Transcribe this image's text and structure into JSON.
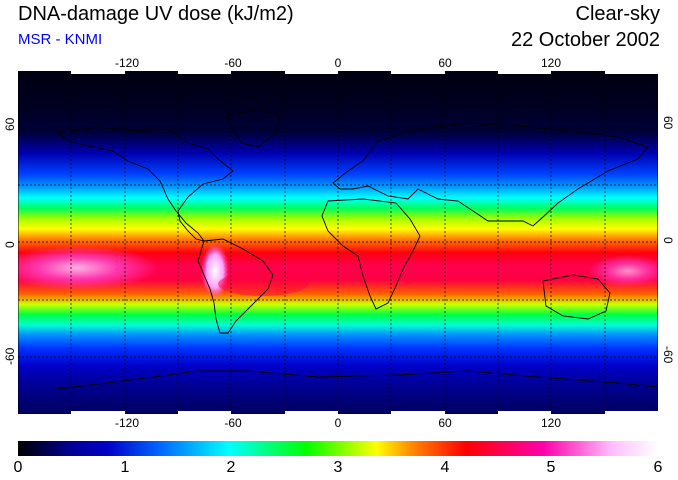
{
  "header": {
    "title": "DNA-damage UV dose (kJ/m2)",
    "source": "MSR - KNMI",
    "condition": "Clear-sky",
    "date": "22 October 2002"
  },
  "map": {
    "projection": "equirectangular",
    "lon_range": [
      -180,
      180
    ],
    "lat_range": [
      -90,
      90
    ],
    "top_lon_ticks": [
      "-120",
      "-60",
      "0",
      "60",
      "120"
    ],
    "bottom_lon_ticks": [
      "-120",
      "-60",
      "0",
      "60",
      "120"
    ],
    "left_lat_ticks": [
      "60",
      "0",
      "-60"
    ],
    "right_lat_ticks": [
      "60",
      "0",
      "-60"
    ],
    "lon_tick_values": [
      -120,
      -60,
      0,
      60,
      120
    ],
    "lat_tick_values": [
      60,
      0,
      -60
    ],
    "grid_lons": [
      -150,
      -120,
      -90,
      -60,
      -30,
      0,
      30,
      60,
      90,
      120,
      150
    ],
    "grid_lats": [
      60,
      30,
      0,
      -30,
      -60
    ],
    "graticule": "dashed"
  },
  "colorbar": {
    "labels": [
      "0",
      "1",
      "2",
      "3",
      "4",
      "5",
      "6"
    ],
    "min": 0,
    "max": 6,
    "colors": [
      "#000000",
      "#0000c8",
      "#0064ff",
      "#00ffff",
      "#00ff00",
      "#ffff00",
      "#ff8000",
      "#ff0000",
      "#ff00aa",
      "#ffc0ff",
      "#ffffff"
    ]
  }
}
